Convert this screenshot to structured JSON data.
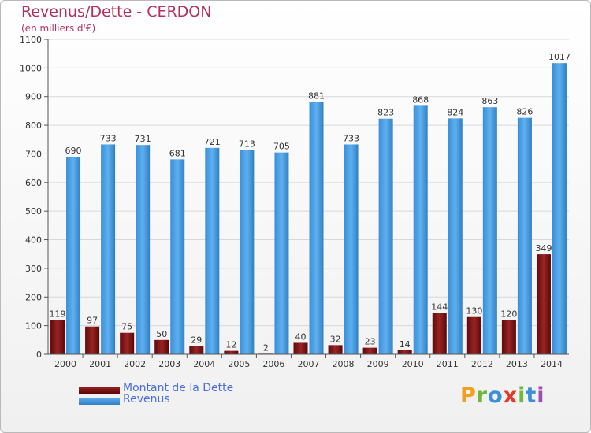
{
  "header": {
    "title": "Revenus/Dette - CERDON",
    "unit": "(en milliers d'€)"
  },
  "legend": [
    {
      "label": "Montant de la Dette",
      "color": "#7a1010"
    },
    {
      "label": "Revenus",
      "color": "#4aa3e6"
    }
  ],
  "logo": {
    "letters": [
      "P",
      "r",
      "o",
      "x",
      "i",
      "t",
      "i"
    ],
    "colors": [
      "#f2a01e",
      "#6fb83a",
      "#3a8fd8",
      "#e43b2c",
      "#6fb83a",
      "#3a8fd8",
      "#9c4fb0"
    ]
  },
  "chart_data": {
    "type": "bar",
    "categories": [
      "2000",
      "2001",
      "2002",
      "2003",
      "2004",
      "2005",
      "2006",
      "2007",
      "2008",
      "2009",
      "2010",
      "2011",
      "2012",
      "2013",
      "2014"
    ],
    "series": [
      {
        "name": "Montant de la Dette",
        "values": [
          119,
          97,
          75,
          50,
          29,
          12,
          2,
          40,
          32,
          23,
          14,
          144,
          130,
          120,
          349
        ],
        "color": "#7a1010"
      },
      {
        "name": "Revenus",
        "values": [
          690,
          733,
          731,
          681,
          721,
          713,
          705,
          881,
          733,
          823,
          868,
          824,
          863,
          826,
          1017
        ],
        "color": "#4aa3e6"
      }
    ],
    "yticks": [
      0,
      100,
      200,
      300,
      400,
      500,
      600,
      700,
      800,
      900,
      1000,
      1100
    ],
    "ylim": [
      0,
      1100
    ],
    "grid": true,
    "legend_position": "bottom-left"
  }
}
